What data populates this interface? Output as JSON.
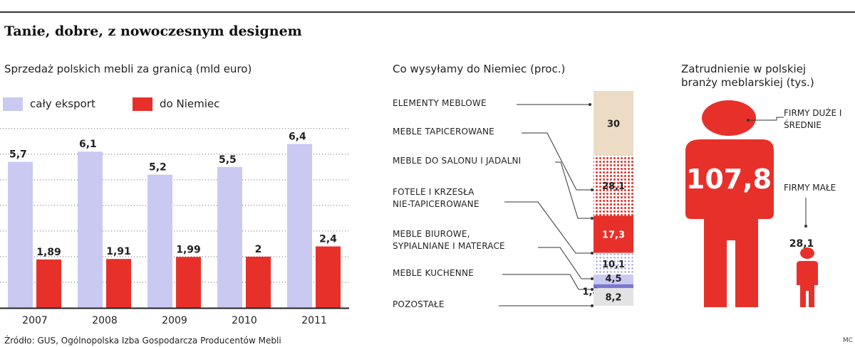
{
  "title": "Tanie, dobre, z nowoczesnym designem",
  "source": "Źródło: GUS, Ogólnopolska Izba Gospodarcza Producentów Mebli",
  "credit": "MC",
  "colors": {
    "export": "#c9c9f2",
    "germany": "#e8302a",
    "text": "#222222"
  },
  "chart_data": [
    {
      "type": "bar",
      "title": "Sprzedaż polskich mebli za granicą (mld euro)",
      "categories": [
        "2007",
        "2008",
        "2009",
        "2010",
        "2011"
      ],
      "series": [
        {
          "name": "cały eksport",
          "values": [
            5.7,
            6.1,
            5.2,
            5.5,
            6.4
          ],
          "labels": [
            "5,7",
            "6,1",
            "5,2",
            "5,5",
            "6,4"
          ]
        },
        {
          "name": "do Niemiec",
          "values": [
            1.89,
            1.91,
            1.99,
            2,
            2.4
          ],
          "labels": [
            "1,89",
            "1,91",
            "1,99",
            "2",
            "2,4"
          ]
        }
      ],
      "ylim": [
        0,
        7.3
      ],
      "grid": true,
      "legend": "top-left"
    },
    {
      "type": "bar",
      "title": "Co wysyłamy do Niemiec (proc.)",
      "stacked": true,
      "segments": [
        {
          "name": "ELEMENTY MEBLOWE",
          "value": 30,
          "label": "30",
          "fill": "#ecdcc6",
          "pattern": "solid"
        },
        {
          "name": "MEBLE TAPICEROWANE",
          "value": 28.1,
          "label": "28,1",
          "fill": "#e8302a",
          "pattern": "dots-dense"
        },
        {
          "name": "MEBLE DO SALONU I JADALNI",
          "value": 17.3,
          "label": "17,3",
          "fill": "#e8302a",
          "pattern": "solid"
        },
        {
          "name": "FOTELE I KRZESŁA NIE-TAPICEROWANE",
          "value": 10.1,
          "label": "10,1",
          "fill": "#9c9cdc",
          "pattern": "dots-sparse"
        },
        {
          "name": "MEBLE BIUROWE, SYPIALNIANE I MATERACE",
          "value": 4.5,
          "label": "4,5",
          "fill": "#c9c9f2",
          "pattern": "solid"
        },
        {
          "name": "MEBLE KUCHENNE",
          "value": 1.8,
          "label": "1,8",
          "fill": "#7878d0",
          "pattern": "solid"
        },
        {
          "name": "POZOSTAŁE",
          "value": 8.2,
          "label": "8,2",
          "fill": "#e3e3e3",
          "pattern": "solid"
        }
      ],
      "labels_top_to_bottom": [
        "ELEMENTY MEBLOWE",
        "MEBLE TAPICEROWANE",
        "MEBLE DO SALONU I JADALNI",
        "FOTELE I KRZESŁA\nNIE-TAPICEROWANE",
        "MEBLE BIUROWE,\nSYPIALNIANE I MATERACE",
        "MEBLE KUCHENNE",
        "POZOSTAŁE"
      ]
    },
    {
      "type": "pictogram",
      "title": "Zatrudnienie w polskiej branży meblarskiej (tys.)",
      "items": [
        {
          "name": "FIRMY DUŻE I ŚREDNIE",
          "value": 107.8,
          "label": "107,8"
        },
        {
          "name": "FIRMY MAŁE",
          "value": 28.1,
          "label": "28,1"
        }
      ]
    }
  ]
}
